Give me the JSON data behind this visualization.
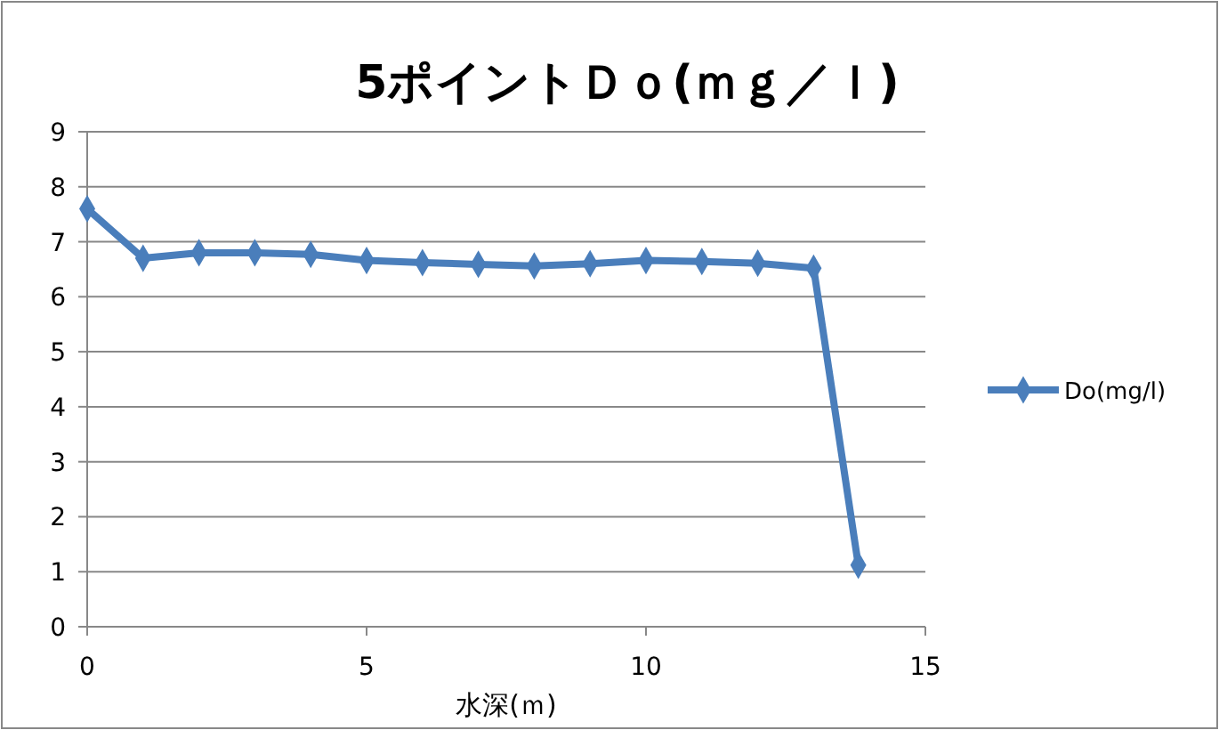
{
  "chart_data": {
    "type": "line",
    "title": "5ポイントＤｏ(ｍｇ／ｌ)",
    "xlabel": "水深(ｍ)",
    "x": [
      0,
      1,
      2,
      3,
      4,
      5,
      6,
      7,
      8,
      9,
      10,
      11,
      12,
      13,
      13.8
    ],
    "series": [
      {
        "name": "Do(mg/l)",
        "color": "#4a7ebb",
        "values": [
          7.6,
          6.7,
          6.8,
          6.8,
          6.77,
          6.66,
          6.62,
          6.59,
          6.56,
          6.6,
          6.66,
          6.64,
          6.61,
          6.52,
          1.12
        ]
      }
    ],
    "xlim": [
      0,
      15
    ],
    "xticks": [
      0,
      5,
      10,
      15
    ],
    "ylim": [
      0,
      9
    ],
    "yticks": [
      0,
      1,
      2,
      3,
      4,
      5,
      6,
      7,
      8,
      9
    ],
    "grid": "y",
    "legend": "right",
    "marker": "diamond",
    "line_style": "solid"
  }
}
